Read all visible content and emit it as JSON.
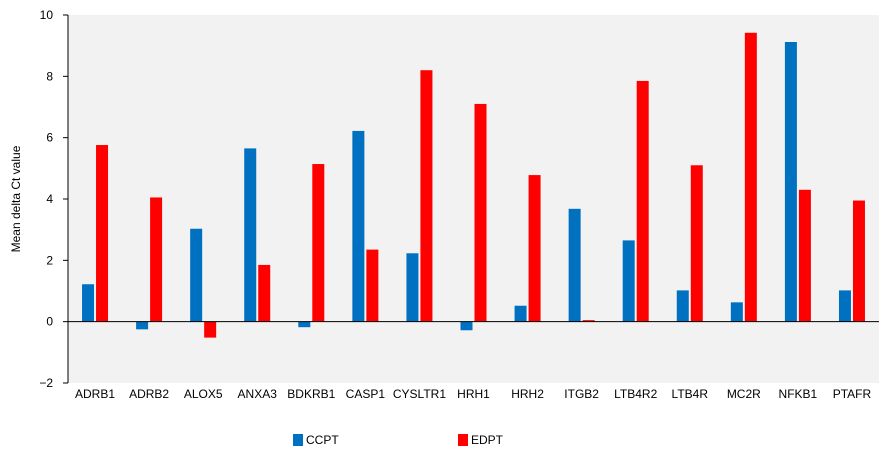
{
  "chart_data": {
    "type": "bar",
    "ylabel": "Mean delta Ct value",
    "ylim": [
      -2,
      10
    ],
    "yticks": [
      -2,
      0,
      2,
      4,
      6,
      8,
      10
    ],
    "ytick_labels": [
      "−2",
      "0",
      "2",
      "4",
      "6",
      "8",
      "10"
    ],
    "categories": [
      "ADRB1",
      "ADRB2",
      "ALOX5",
      "ANXA3",
      "BDKRB1",
      "CASP1",
      "CYSLTR1",
      "HRH1",
      "HRH2",
      "ITGB2",
      "LTB4R2",
      "LTB4R",
      "MC2R",
      "NFKB1",
      "PTAFR"
    ],
    "series": [
      {
        "name": "CCPT",
        "color": "#0070C0",
        "values": [
          1.22,
          -0.25,
          3.03,
          5.65,
          -0.18,
          6.22,
          2.23,
          -0.28,
          0.52,
          3.68,
          2.65,
          1.02,
          0.63,
          9.12,
          1.02
        ]
      },
      {
        "name": "EDPT",
        "color": "#FF0000",
        "values": [
          5.76,
          4.05,
          -0.52,
          1.85,
          5.14,
          2.35,
          8.2,
          7.1,
          4.78,
          0.05,
          7.85,
          5.1,
          9.42,
          4.3,
          3.95
        ]
      }
    ],
    "grid": false,
    "legend_position": "bottom"
  }
}
